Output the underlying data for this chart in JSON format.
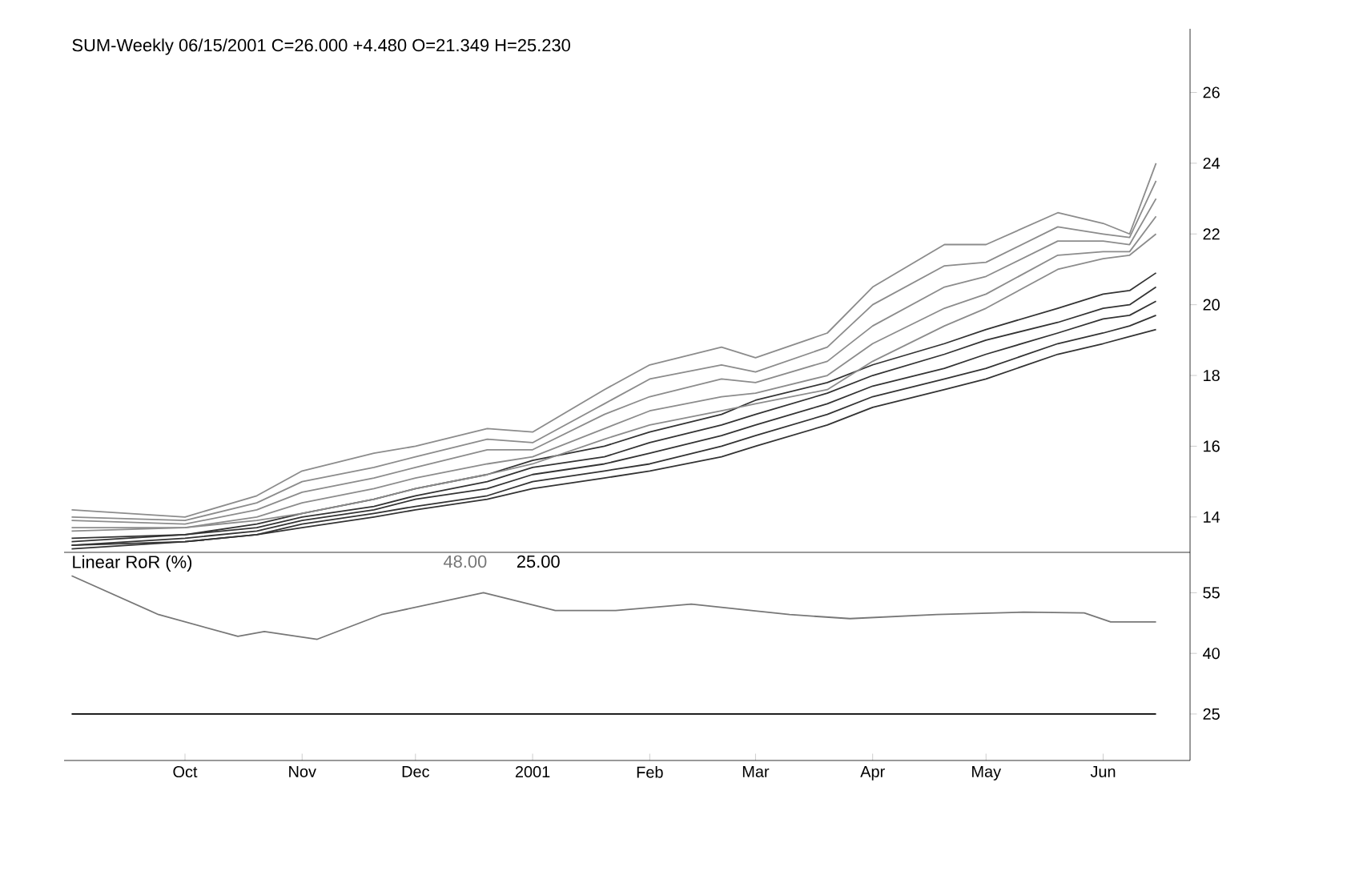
{
  "chart_data": [
    {
      "type": "line",
      "title": "SUM-Weekly  06/15/2001  C=26.000  +4.480  O=21.349  H=25.230",
      "x": [
        "2000-09-01",
        "2000-10-01",
        "2000-10-20",
        "2000-11-01",
        "2000-11-20",
        "2000-12-01",
        "2000-12-20",
        "2001-01-01",
        "2001-01-20",
        "2001-02-01",
        "2001-02-20",
        "2001-03-01",
        "2001-03-20",
        "2001-04-01",
        "2001-04-20",
        "2001-05-01",
        "2001-05-20",
        "2001-06-01",
        "2001-06-08",
        "2001-06-15"
      ],
      "series": [
        {
          "color": "#333333",
          "values": [
            13.1,
            13.3,
            13.5,
            13.7,
            14.0,
            14.2,
            14.5,
            14.8,
            15.1,
            15.3,
            15.7,
            16.0,
            16.6,
            17.1,
            17.6,
            17.9,
            18.6,
            18.9,
            19.1,
            19.3
          ]
        },
        {
          "color": "#333333",
          "values": [
            13.2,
            13.3,
            13.5,
            13.8,
            14.1,
            14.3,
            14.6,
            15.0,
            15.3,
            15.5,
            16.0,
            16.3,
            16.9,
            17.4,
            17.9,
            18.2,
            18.9,
            19.2,
            19.4,
            19.7
          ]
        },
        {
          "color": "#333333",
          "values": [
            13.2,
            13.4,
            13.6,
            13.9,
            14.2,
            14.5,
            14.8,
            15.2,
            15.5,
            15.8,
            16.3,
            16.6,
            17.2,
            17.7,
            18.2,
            18.6,
            19.2,
            19.6,
            19.7,
            20.1
          ]
        },
        {
          "color": "#333333",
          "values": [
            13.3,
            13.5,
            13.7,
            14.0,
            14.3,
            14.6,
            15.0,
            15.4,
            15.7,
            16.1,
            16.6,
            16.9,
            17.5,
            18.0,
            18.6,
            19.0,
            19.5,
            19.9,
            20.0,
            20.5
          ]
        },
        {
          "color": "#333333",
          "values": [
            13.4,
            13.5,
            13.8,
            14.1,
            14.5,
            14.8,
            15.2,
            15.6,
            16.0,
            16.4,
            16.9,
            17.3,
            17.8,
            18.3,
            18.9,
            19.3,
            19.9,
            20.3,
            20.4,
            20.9
          ]
        },
        {
          "color": "#8c8c8c",
          "values": [
            13.6,
            13.7,
            13.9,
            14.1,
            14.5,
            14.8,
            15.2,
            15.5,
            16.2,
            16.6,
            17.0,
            17.2,
            17.6,
            18.4,
            19.4,
            19.9,
            21.0,
            21.3,
            21.4,
            22.0
          ]
        },
        {
          "color": "#8c8c8c",
          "values": [
            13.7,
            13.7,
            14.0,
            14.4,
            14.8,
            15.1,
            15.5,
            15.7,
            16.5,
            17.0,
            17.4,
            17.5,
            18.0,
            18.9,
            19.9,
            20.3,
            21.4,
            21.5,
            21.5,
            22.5
          ]
        },
        {
          "color": "#8c8c8c",
          "values": [
            13.9,
            13.8,
            14.2,
            14.7,
            15.1,
            15.4,
            15.9,
            15.9,
            16.9,
            17.4,
            17.9,
            17.8,
            18.4,
            19.4,
            20.5,
            20.8,
            21.8,
            21.8,
            21.7,
            23.0
          ]
        },
        {
          "color": "#8c8c8c",
          "values": [
            14.0,
            13.9,
            14.4,
            15.0,
            15.4,
            15.7,
            16.2,
            16.1,
            17.2,
            17.9,
            18.3,
            18.1,
            18.8,
            20.0,
            21.1,
            21.2,
            22.2,
            22.0,
            21.9,
            23.5
          ]
        },
        {
          "color": "#8c8c8c",
          "values": [
            14.2,
            14.0,
            14.6,
            15.3,
            15.8,
            16.0,
            16.5,
            16.4,
            17.6,
            18.3,
            18.8,
            18.5,
            19.2,
            20.5,
            21.7,
            21.7,
            22.6,
            22.3,
            22.0,
            24.0
          ]
        }
      ],
      "xlim": [
        "2000-08-30",
        "2001-06-24"
      ],
      "ylim": [
        13,
        27.8
      ],
      "yticks": [
        14,
        16,
        18,
        20,
        22,
        24,
        26
      ],
      "tick_labels": "y"
    },
    {
      "type": "line",
      "title": "Linear RoR (%)",
      "annotations": [
        "48.00",
        "25.00"
      ],
      "series": [
        {
          "color": "#777777",
          "x": [
            "2000-09-01",
            "2000-09-24",
            "2000-10-15",
            "2000-10-22",
            "2000-11-05",
            "2000-11-22",
            "2000-12-19",
            "2001-01-07",
            "2001-01-23",
            "2001-02-12",
            "2001-03-10",
            "2001-03-26",
            "2001-04-18",
            "2001-05-11",
            "2001-05-27",
            "2001-06-03",
            "2001-06-15"
          ],
          "values": [
            59.2,
            49.6,
            44.2,
            45.4,
            43.5,
            49.6,
            55.0,
            50.6,
            50.6,
            52.2,
            49.6,
            48.6,
            49.6,
            50.2,
            50.0,
            47.8,
            47.8
          ]
        },
        {
          "color": "#000000",
          "x": [
            "2000-09-01",
            "2001-06-15"
          ],
          "values": [
            25,
            25
          ]
        }
      ],
      "xlim": [
        "2000-08-30",
        "2001-06-24"
      ],
      "xticks": [
        {
          "value": "2000-10-01",
          "label": "Oct"
        },
        {
          "value": "2000-11-01",
          "label": "Nov"
        },
        {
          "value": "2000-12-01",
          "label": "Dec"
        },
        {
          "value": "2001-01-01",
          "label": "2001"
        },
        {
          "value": "2001-02-01",
          "label": "Feb"
        },
        {
          "value": "2001-03-01",
          "label": "Mar"
        },
        {
          "value": "2001-04-01",
          "label": "Apr"
        },
        {
          "value": "2001-05-01",
          "label": "May"
        },
        {
          "value": "2001-06-01",
          "label": "Jun"
        }
      ],
      "ylim": [
        13.5,
        65
      ],
      "yticks": [
        25,
        40,
        55
      ]
    }
  ]
}
